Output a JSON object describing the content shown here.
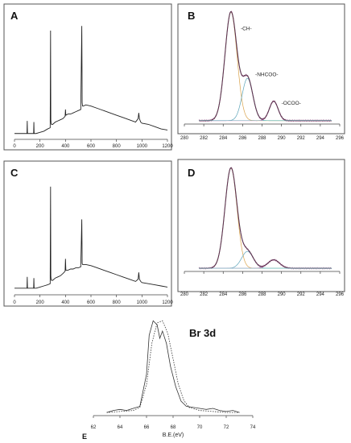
{
  "chart_data": [
    {
      "id": "A",
      "panel_label": "A",
      "type": "line",
      "description_kind": "xps_survey",
      "xlim": [
        0,
        1200
      ],
      "x_ticks": [
        0,
        200,
        400,
        600,
        800,
        1000,
        1200
      ],
      "x_tick_labels": [
        "0",
        "200",
        "400",
        "600",
        "800",
        "1000",
        "1200"
      ],
      "ylim": [
        0,
        100
      ],
      "series": [
        {
          "x": [
            0,
            20,
            40,
            60,
            80,
            98,
            100,
            102,
            120,
            140,
            150,
            152,
            154,
            170,
            200,
            230,
            260,
            280,
            283,
            285,
            287,
            290,
            300,
            320,
            340,
            360,
            380,
            397,
            400,
            403,
            420,
            440,
            460,
            480,
            500,
            520,
            528,
            531,
            534,
            540,
            560,
            600,
            650,
            700,
            750,
            800,
            850,
            900,
            950,
            970,
            975,
            980,
            990,
            1000,
            1050,
            1100,
            1150,
            1200
          ],
          "y": [
            3,
            3,
            3,
            3,
            3,
            3,
            14,
            3,
            3,
            3,
            3,
            13,
            3,
            3,
            4,
            5,
            7,
            8,
            93,
            15,
            12,
            11,
            11,
            13,
            14,
            15,
            16,
            18,
            24,
            19,
            20,
            20,
            21,
            22,
            23,
            24,
            97,
            30,
            27,
            27,
            28,
            27,
            25,
            23,
            21,
            19,
            17,
            15,
            13,
            16,
            21,
            16,
            13,
            12,
            11,
            9,
            7,
            6
          ]
        }
      ]
    },
    {
      "id": "B",
      "panel_label": "B",
      "type": "line",
      "description_kind": "c1s_fit",
      "xlim": [
        280,
        296
      ],
      "x_ticks": [
        280,
        282,
        284,
        286,
        288,
        290,
        292,
        294,
        296
      ],
      "x_tick_labels": [
        "280",
        "282",
        "284",
        "286",
        "288",
        "290",
        "292",
        "294",
        "296"
      ],
      "ylim": [
        0,
        100
      ],
      "peaks": [
        {
          "center": 284.8,
          "height": 95,
          "sigma": 0.62
        },
        {
          "center": 286.5,
          "height": 37,
          "sigma": 0.55
        },
        {
          "center": 289.2,
          "height": 17,
          "sigma": 0.45
        }
      ],
      "baseline": 3,
      "annotations": [
        "-CH-",
        "-NHCOO-",
        "-OCOO-"
      ]
    },
    {
      "id": "C",
      "panel_label": "C",
      "type": "line",
      "description_kind": "xps_survey",
      "xlim": [
        0,
        1200
      ],
      "x_ticks": [
        0,
        200,
        400,
        600,
        800,
        1000,
        1200
      ],
      "x_tick_labels": [
        "0",
        "200",
        "400",
        "600",
        "800",
        "1000",
        "1200"
      ],
      "ylim": [
        0,
        100
      ],
      "series": [
        {
          "x": [
            0,
            20,
            40,
            60,
            80,
            98,
            100,
            102,
            120,
            140,
            150,
            152,
            154,
            170,
            200,
            230,
            260,
            280,
            283,
            285,
            287,
            290,
            300,
            320,
            340,
            360,
            380,
            397,
            400,
            403,
            420,
            440,
            460,
            480,
            500,
            520,
            528,
            531,
            534,
            540,
            560,
            600,
            650,
            700,
            750,
            800,
            850,
            900,
            950,
            970,
            975,
            980,
            990,
            1000,
            1050,
            1100,
            1150,
            1200
          ],
          "y": [
            3,
            3,
            3,
            3,
            3,
            3,
            13,
            3,
            3,
            3,
            3,
            12,
            3,
            3,
            4,
            5,
            6,
            7,
            93,
            14,
            11,
            10,
            10,
            12,
            13,
            14,
            16,
            18,
            29,
            19,
            19,
            20,
            20,
            21,
            21,
            22,
            64,
            25,
            24,
            24,
            24,
            23,
            21,
            19,
            17,
            15,
            13,
            11,
            9,
            11,
            17,
            11,
            9,
            8,
            7,
            6,
            5,
            4
          ]
        }
      ]
    },
    {
      "id": "D",
      "panel_label": "D",
      "type": "line",
      "description_kind": "c1s_fit",
      "xlim": [
        280,
        296
      ],
      "x_ticks": [
        280,
        282,
        284,
        286,
        288,
        290,
        292,
        294,
        296
      ],
      "x_tick_labels": [
        "280",
        "282",
        "284",
        "286",
        "288",
        "290",
        "292",
        "294",
        "296"
      ],
      "ylim": [
        0,
        100
      ],
      "peaks": [
        {
          "center": 284.8,
          "height": 95,
          "sigma": 0.62
        },
        {
          "center": 286.5,
          "height": 16,
          "sigma": 0.6
        },
        {
          "center": 289.2,
          "height": 8,
          "sigma": 0.6
        }
      ],
      "baseline": 3,
      "annotations": []
    },
    {
      "id": "E",
      "panel_label": "E",
      "type": "line",
      "description_kind": "br3d",
      "title": "Br 3d",
      "xlabel": "B.E.(eV)",
      "xlim": [
        62,
        74
      ],
      "x_ticks": [
        62,
        64,
        66,
        68,
        70,
        72,
        74
      ],
      "x_tick_labels": [
        "62",
        "64",
        "66",
        "68",
        "70",
        "72",
        "74"
      ],
      "ylim": [
        0,
        100
      ],
      "series": [
        {
          "name": "",
          "style": "solid",
          "x": [
            63,
            63.5,
            64,
            64.5,
            65,
            65.5,
            66,
            66.2,
            66.5,
            66.8,
            67,
            67.2,
            67.5,
            67.8,
            68.2,
            68.6,
            69,
            69.5,
            70,
            70.5,
            71,
            71.5,
            72,
            72.5,
            73
          ],
          "y": [
            3,
            5,
            6,
            5,
            7,
            9,
            40,
            78,
            92,
            88,
            75,
            82,
            70,
            48,
            28,
            14,
            9,
            8,
            7,
            6,
            7,
            5,
            4,
            5,
            3
          ]
        },
        {
          "name": "",
          "style": "dotted",
          "x": [
            63,
            64,
            65,
            65.5,
            66,
            66.4,
            66.8,
            67.2,
            67.6,
            68,
            68.4,
            68.8,
            69.2,
            70,
            71,
            72,
            73
          ],
          "y": [
            3,
            4,
            5,
            8,
            30,
            70,
            90,
            92,
            80,
            55,
            30,
            15,
            8,
            5,
            4,
            3,
            3
          ]
        }
      ]
    }
  ]
}
